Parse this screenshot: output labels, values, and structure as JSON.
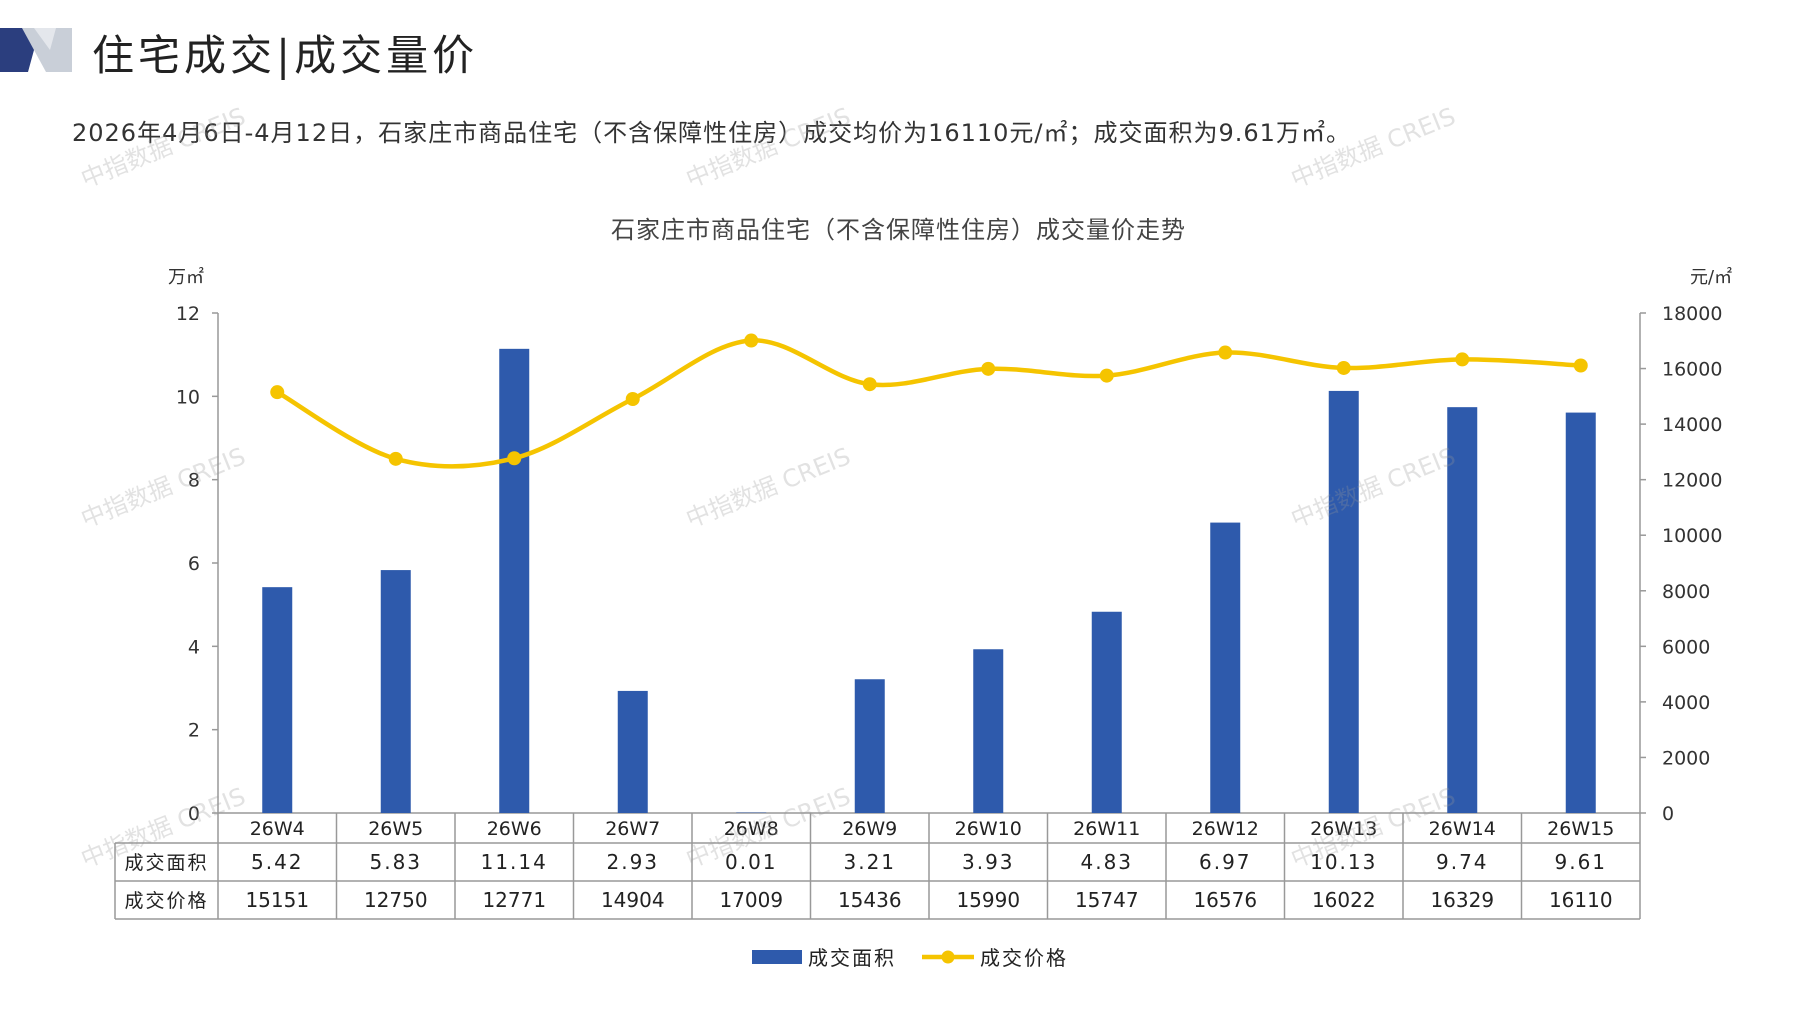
{
  "header": {
    "title": "住宅成交|成交量价"
  },
  "summary": "2026年4月6日-4月12日，石家庄市商品住宅（不含保障性住房）成交均价为16110元/㎡；成交面积为9.61万㎡。",
  "watermark": "中指数据 CREIS",
  "colors": {
    "bar": "#2E5AAC",
    "line": "#F5C400",
    "dark_accent": "#2B3E7E",
    "grid": "#999999"
  },
  "chart_data": {
    "type": "bar",
    "title": "石家庄市商品住宅（不含保障性住房）成交量价走势",
    "categories": [
      "26W4",
      "26W5",
      "26W6",
      "26W7",
      "26W8",
      "26W9",
      "26W10",
      "26W11",
      "26W12",
      "26W13",
      "26W14",
      "26W15"
    ],
    "series": [
      {
        "name": "成交面积",
        "type": "bar",
        "axis": "left",
        "values": [
          5.42,
          5.83,
          11.14,
          2.93,
          0.01,
          3.21,
          3.93,
          4.83,
          6.97,
          10.13,
          9.74,
          9.61
        ]
      },
      {
        "name": "成交价格",
        "type": "line",
        "axis": "right",
        "values": [
          15151,
          12750,
          12771,
          14904,
          17009,
          15436,
          15990,
          15747,
          16576,
          16022,
          16329,
          16110
        ]
      }
    ],
    "table_values": {
      "成交面积": [
        "5.42",
        "5.83",
        "11.14",
        "2.93",
        "0.01",
        "3.21",
        "3.93",
        "4.83",
        "6.97",
        "10.13",
        "9.74",
        "9.61"
      ],
      "成交价格": [
        "15151",
        "12750",
        "12771",
        "14904",
        "17009",
        "15436",
        "15990",
        "15747",
        "16576",
        "16022",
        "16329",
        "16110"
      ]
    },
    "y_left": {
      "unit": "万㎡",
      "ylim": [
        0,
        12
      ],
      "ticks": [
        "0",
        "2",
        "4",
        "6",
        "8",
        "10",
        "12"
      ]
    },
    "y_right": {
      "unit": "元/㎡",
      "ylim": [
        0,
        18000
      ],
      "ticks": [
        "0",
        "2000",
        "4000",
        "6000",
        "8000",
        "10000",
        "12000",
        "14000",
        "16000",
        "18000"
      ]
    },
    "legend": {
      "position": "bottom",
      "items": [
        "成交面积",
        "成交价格"
      ]
    },
    "grid": false
  }
}
